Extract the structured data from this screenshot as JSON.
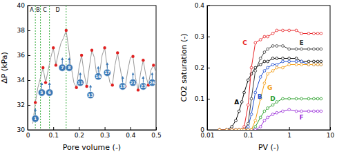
{
  "chart_data": [
    {
      "type": "line",
      "xlabel": "Pore volume (-)",
      "ylabel": "ΔP (kPa)",
      "xlim": [
        0,
        0.5
      ],
      "ylim": [
        30,
        40
      ],
      "xticks": [
        0,
        0.1,
        0.2,
        0.3,
        0.4,
        0.5
      ],
      "yticks": [
        30,
        32,
        34,
        36,
        38,
        40
      ],
      "vertical_lines": [
        0.03,
        0.05,
        0.085,
        0.15
      ],
      "phases": [
        {
          "label": "A",
          "x": 0.016
        },
        {
          "label": "B",
          "x": 0.04
        },
        {
          "label": "C",
          "x": 0.067
        },
        {
          "label": "D",
          "x": 0.117
        }
      ],
      "numbered_points": [
        {
          "label": "1",
          "x": 0.03,
          "y": 30.9
        },
        {
          "label": "5",
          "x": 0.055,
          "y": 33.0
        },
        {
          "label": "6",
          "x": 0.085,
          "y": 33.0
        },
        {
          "label": "7",
          "x": 0.135,
          "y": 35.0
        },
        {
          "label": "8",
          "x": 0.162,
          "y": 35.0
        },
        {
          "label": "11",
          "x": 0.205,
          "y": 33.8
        },
        {
          "label": "13",
          "x": 0.245,
          "y": 32.8
        },
        {
          "label": "16",
          "x": 0.275,
          "y": 34.3
        },
        {
          "label": "17",
          "x": 0.31,
          "y": 34.6
        },
        {
          "label": "19",
          "x": 0.37,
          "y": 33.5
        },
        {
          "label": "21",
          "x": 0.41,
          "y": 33.8
        },
        {
          "label": "23",
          "x": 0.45,
          "y": 33.5
        },
        {
          "label": "26",
          "x": 0.485,
          "y": 33.8
        }
      ],
      "x": [
        0.02,
        0.03,
        0.04,
        0.05,
        0.06,
        0.07,
        0.08,
        0.09,
        0.1,
        0.11,
        0.12,
        0.13,
        0.14,
        0.15,
        0.16,
        0.17,
        0.18,
        0.19,
        0.2,
        0.21,
        0.22,
        0.23,
        0.24,
        0.25,
        0.26,
        0.27,
        0.28,
        0.29,
        0.3,
        0.31,
        0.32,
        0.33,
        0.34,
        0.35,
        0.36,
        0.37,
        0.38,
        0.39,
        0.4,
        0.41,
        0.42,
        0.43,
        0.44,
        0.45,
        0.46,
        0.47,
        0.48,
        0.49,
        0.5
      ],
      "series": [
        {
          "type": "line",
          "color": "#9a9a9a",
          "marker": "none",
          "values": [
            30.5,
            32.2,
            33.4,
            34.2,
            35.0,
            33.8,
            34.8,
            35.8,
            36.6,
            35.2,
            36.2,
            37.0,
            37.4,
            38.0,
            36.5,
            35.0,
            33.8,
            33.4,
            35.0,
            36.0,
            34.5,
            33.5,
            35.0,
            36.4,
            35.8,
            34.2,
            34.5,
            36.0,
            36.6,
            35.0,
            33.8,
            33.6,
            35.2,
            36.2,
            35.0,
            33.8,
            33.5,
            34.8,
            35.8,
            35.9,
            34.2,
            33.2,
            34.6,
            35.6,
            34.4,
            33.6,
            34.8,
            35.2,
            34.6
          ]
        },
        {
          "type": "scatter",
          "color": "#e02020",
          "marker": "circle",
          "x": [
            0.03,
            0.06,
            0.07,
            0.1,
            0.11,
            0.15,
            0.19,
            0.21,
            0.23,
            0.25,
            0.27,
            0.3,
            0.33,
            0.35,
            0.38,
            0.41,
            0.43,
            0.45,
            0.47,
            0.49
          ],
          "values": [
            32.2,
            35.0,
            33.8,
            36.6,
            35.2,
            38.0,
            33.4,
            36.0,
            33.5,
            36.4,
            34.2,
            36.6,
            33.6,
            36.2,
            33.5,
            35.9,
            33.2,
            35.6,
            33.6,
            35.2
          ]
        }
      ]
    },
    {
      "type": "line",
      "log": "x",
      "xlabel": "PV (-)",
      "ylabel": "CO2 saturation (-)",
      "xlim": [
        0.01,
        10
      ],
      "ylim": [
        0,
        0.4
      ],
      "xticks": [
        0.01,
        0.1,
        1,
        10
      ],
      "yticks": [
        0,
        0.1,
        0.2,
        0.3,
        0.4
      ],
      "x": [
        0.02,
        0.03,
        0.04,
        0.05,
        0.06,
        0.07,
        0.08,
        0.1,
        0.12,
        0.15,
        0.2,
        0.25,
        0.3,
        0.4,
        0.5,
        0.7,
        1,
        1.5,
        2,
        3,
        4,
        5,
        6
      ],
      "series": [
        {
          "name": "A",
          "color": "#000000",
          "marker": "open_circle",
          "values": [
            0,
            0,
            0.01,
            0.03,
            0.06,
            0.09,
            0.12,
            0.16,
            0.18,
            0.2,
            0.21,
            0.22,
            0.22,
            0.23,
            0.23,
            0.23,
            0.23,
            0.23,
            0.22,
            0.22,
            0.22,
            0.22,
            0.22
          ]
        },
        {
          "name": "B",
          "color": "#1f4fd1",
          "marker": "open_circle",
          "values": [
            0,
            0,
            0,
            0,
            0,
            0,
            0,
            0.01,
            0.05,
            0.12,
            0.17,
            0.19,
            0.2,
            0.21,
            0.21,
            0.22,
            0.22,
            0.22,
            0.22,
            0.21,
            0.21,
            0.21,
            0.21
          ]
        },
        {
          "name": "C",
          "color": "#e8262a",
          "marker": "open_circle",
          "values": [
            0,
            0,
            0,
            0,
            0,
            0,
            0.01,
            0.08,
            0.2,
            0.28,
            0.29,
            0.3,
            0.3,
            0.31,
            0.32,
            0.32,
            0.32,
            0.32,
            0.31,
            0.31,
            0.31,
            0.31,
            0.31
          ]
        },
        {
          "name": "D",
          "color": "#2ca02c",
          "marker": "open_circle",
          "values": [
            0,
            0,
            0,
            0,
            0,
            0,
            0,
            0,
            0,
            0.01,
            0.04,
            0.06,
            0.07,
            0.08,
            0.09,
            0.1,
            0.1,
            0.1,
            0.1,
            0.1,
            0.1,
            0.1,
            0.1
          ]
        },
        {
          "name": "E",
          "color": "#3b3b3b",
          "marker": "open_circle",
          "values": [
            0,
            0,
            0,
            0,
            0,
            0,
            0,
            0.02,
            0.1,
            0.19,
            0.23,
            0.25,
            0.26,
            0.27,
            0.27,
            0.27,
            0.26,
            0.26,
            0.26,
            0.26,
            0.26,
            0.26,
            0.26
          ]
        },
        {
          "name": "F",
          "color": "#9b30d9",
          "marker": "open_circle",
          "values": [
            0,
            0,
            0,
            0,
            0,
            0,
            0,
            0,
            0,
            0,
            0.01,
            0.03,
            0.04,
            0.05,
            0.055,
            0.06,
            0.065,
            0.06,
            0.06,
            0.06,
            0.06,
            0.06,
            0.06
          ]
        },
        {
          "name": "G",
          "color": "#f39c12",
          "marker": "open_circle",
          "values": [
            0,
            0,
            0,
            0,
            0,
            0,
            0,
            0,
            0,
            0.03,
            0.1,
            0.15,
            0.18,
            0.19,
            0.2,
            0.2,
            0.21,
            0.21,
            0.21,
            0.21,
            0.21,
            0.21,
            0.21
          ]
        }
      ]
    }
  ]
}
